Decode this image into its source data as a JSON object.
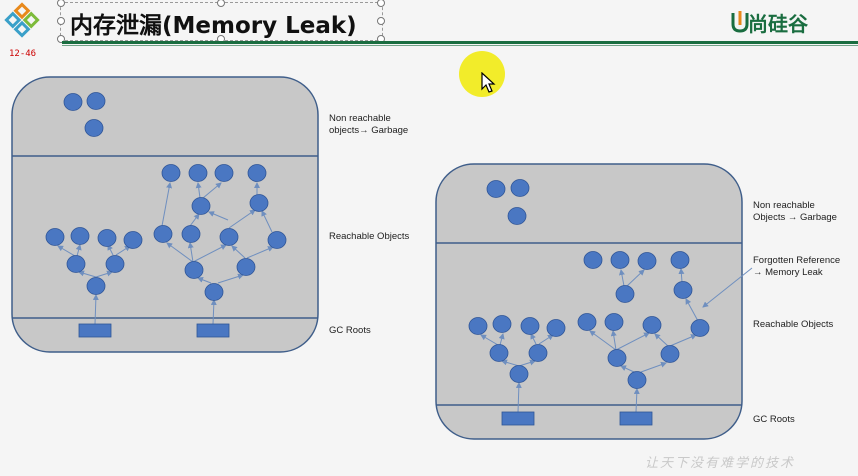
{
  "title": "内存泄漏(Memory Leak)",
  "brand": "尚硅谷",
  "slide_number": "12-46",
  "footer": "让天下没有难学的技术",
  "colors": {
    "node": "#4a77c2",
    "panel": "#c8c8c8",
    "border": "#3f5e8a",
    "accent_green": "#1a6d40",
    "brand_orange": "#e8891c"
  },
  "left_diagram": {
    "labels": {
      "non_reachable_1": "Non reachable",
      "non_reachable_2": "objects→ Garbage",
      "reachable": "Reachable Objects",
      "gc_roots": "GC Roots"
    }
  },
  "right_diagram": {
    "labels": {
      "non_reachable_1": "Non reachable",
      "non_reachable_2": "Objects → Garbage",
      "forgotten_1": "Forgotten Reference",
      "forgotten_2": "→ Memory Leak",
      "reachable": "Reachable Objects",
      "gc_roots": "GC Roots"
    }
  }
}
